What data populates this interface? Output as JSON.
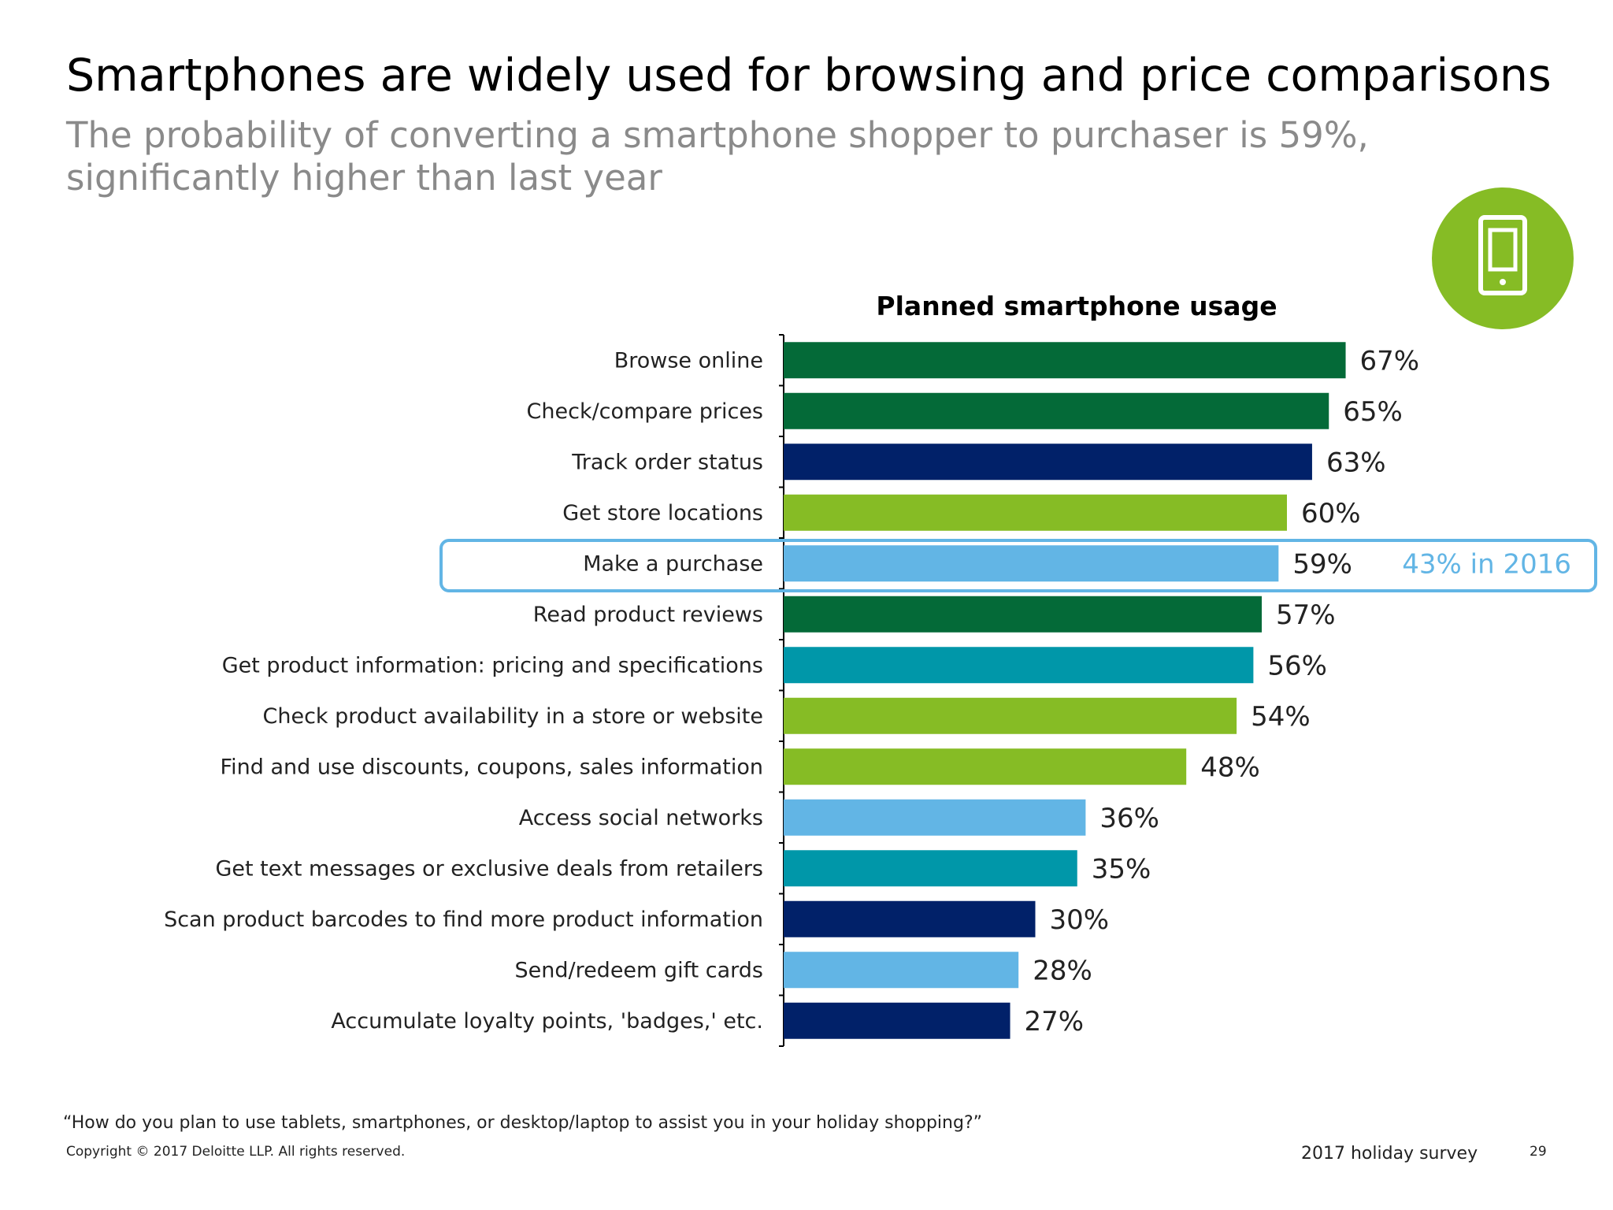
{
  "slide": {
    "title": "Smartphones are widely used for browsing and price comparisons",
    "subtitle_line1": "The probability of converting a smartphone shopper to purchaser is 59%,",
    "subtitle_line2": "significantly higher than last year",
    "footnote": "“How do you plan to use tablets, smartphones, or desktop/laptop to assist you in your holiday shopping?”",
    "copyright": "Copyright © 2017 Deloitte LLP. All rights reserved.",
    "survey": "2017 holiday survey",
    "page_number": "29",
    "icon": "smartphone-icon"
  },
  "colors": {
    "dark_green": "#046a38",
    "navy": "#012169",
    "lime": "#86bc25",
    "light_blue": "#62b5e5",
    "teal": "#0097a9",
    "highlight": "#62b5e5"
  },
  "chart_data": {
    "type": "bar",
    "orientation": "horizontal",
    "title": "Planned smartphone usage",
    "categories": [
      "Browse online",
      "Check/compare prices",
      "Track order status",
      "Get store locations",
      "Make a purchase",
      "Read product reviews",
      "Get product information: pricing and specifications",
      "Check product availability in a store or website",
      "Find and use discounts, coupons, sales information",
      "Access social networks",
      "Get text messages or exclusive deals from retailers",
      "Scan product barcodes to find more product information",
      "Send/redeem gift cards",
      "Accumulate loyalty points, 'badges,' etc."
    ],
    "values": [
      67,
      65,
      63,
      60,
      59,
      57,
      56,
      54,
      48,
      36,
      35,
      30,
      28,
      27
    ],
    "value_labels": [
      "67%",
      "65%",
      "63%",
      "60%",
      "59%",
      "57%",
      "56%",
      "54%",
      "48%",
      "36%",
      "35%",
      "30%",
      "28%",
      "27%"
    ],
    "bar_colors": [
      "#046a38",
      "#046a38",
      "#012169",
      "#86bc25",
      "#62b5e5",
      "#046a38",
      "#0097a9",
      "#86bc25",
      "#86bc25",
      "#62b5e5",
      "#0097a9",
      "#012169",
      "#62b5e5",
      "#012169"
    ],
    "unit": "%",
    "highlight": {
      "category": "Make a purchase",
      "annotation": "43% in 2016"
    },
    "xlim": [
      0,
      100
    ],
    "grid": false,
    "legend": "none"
  }
}
